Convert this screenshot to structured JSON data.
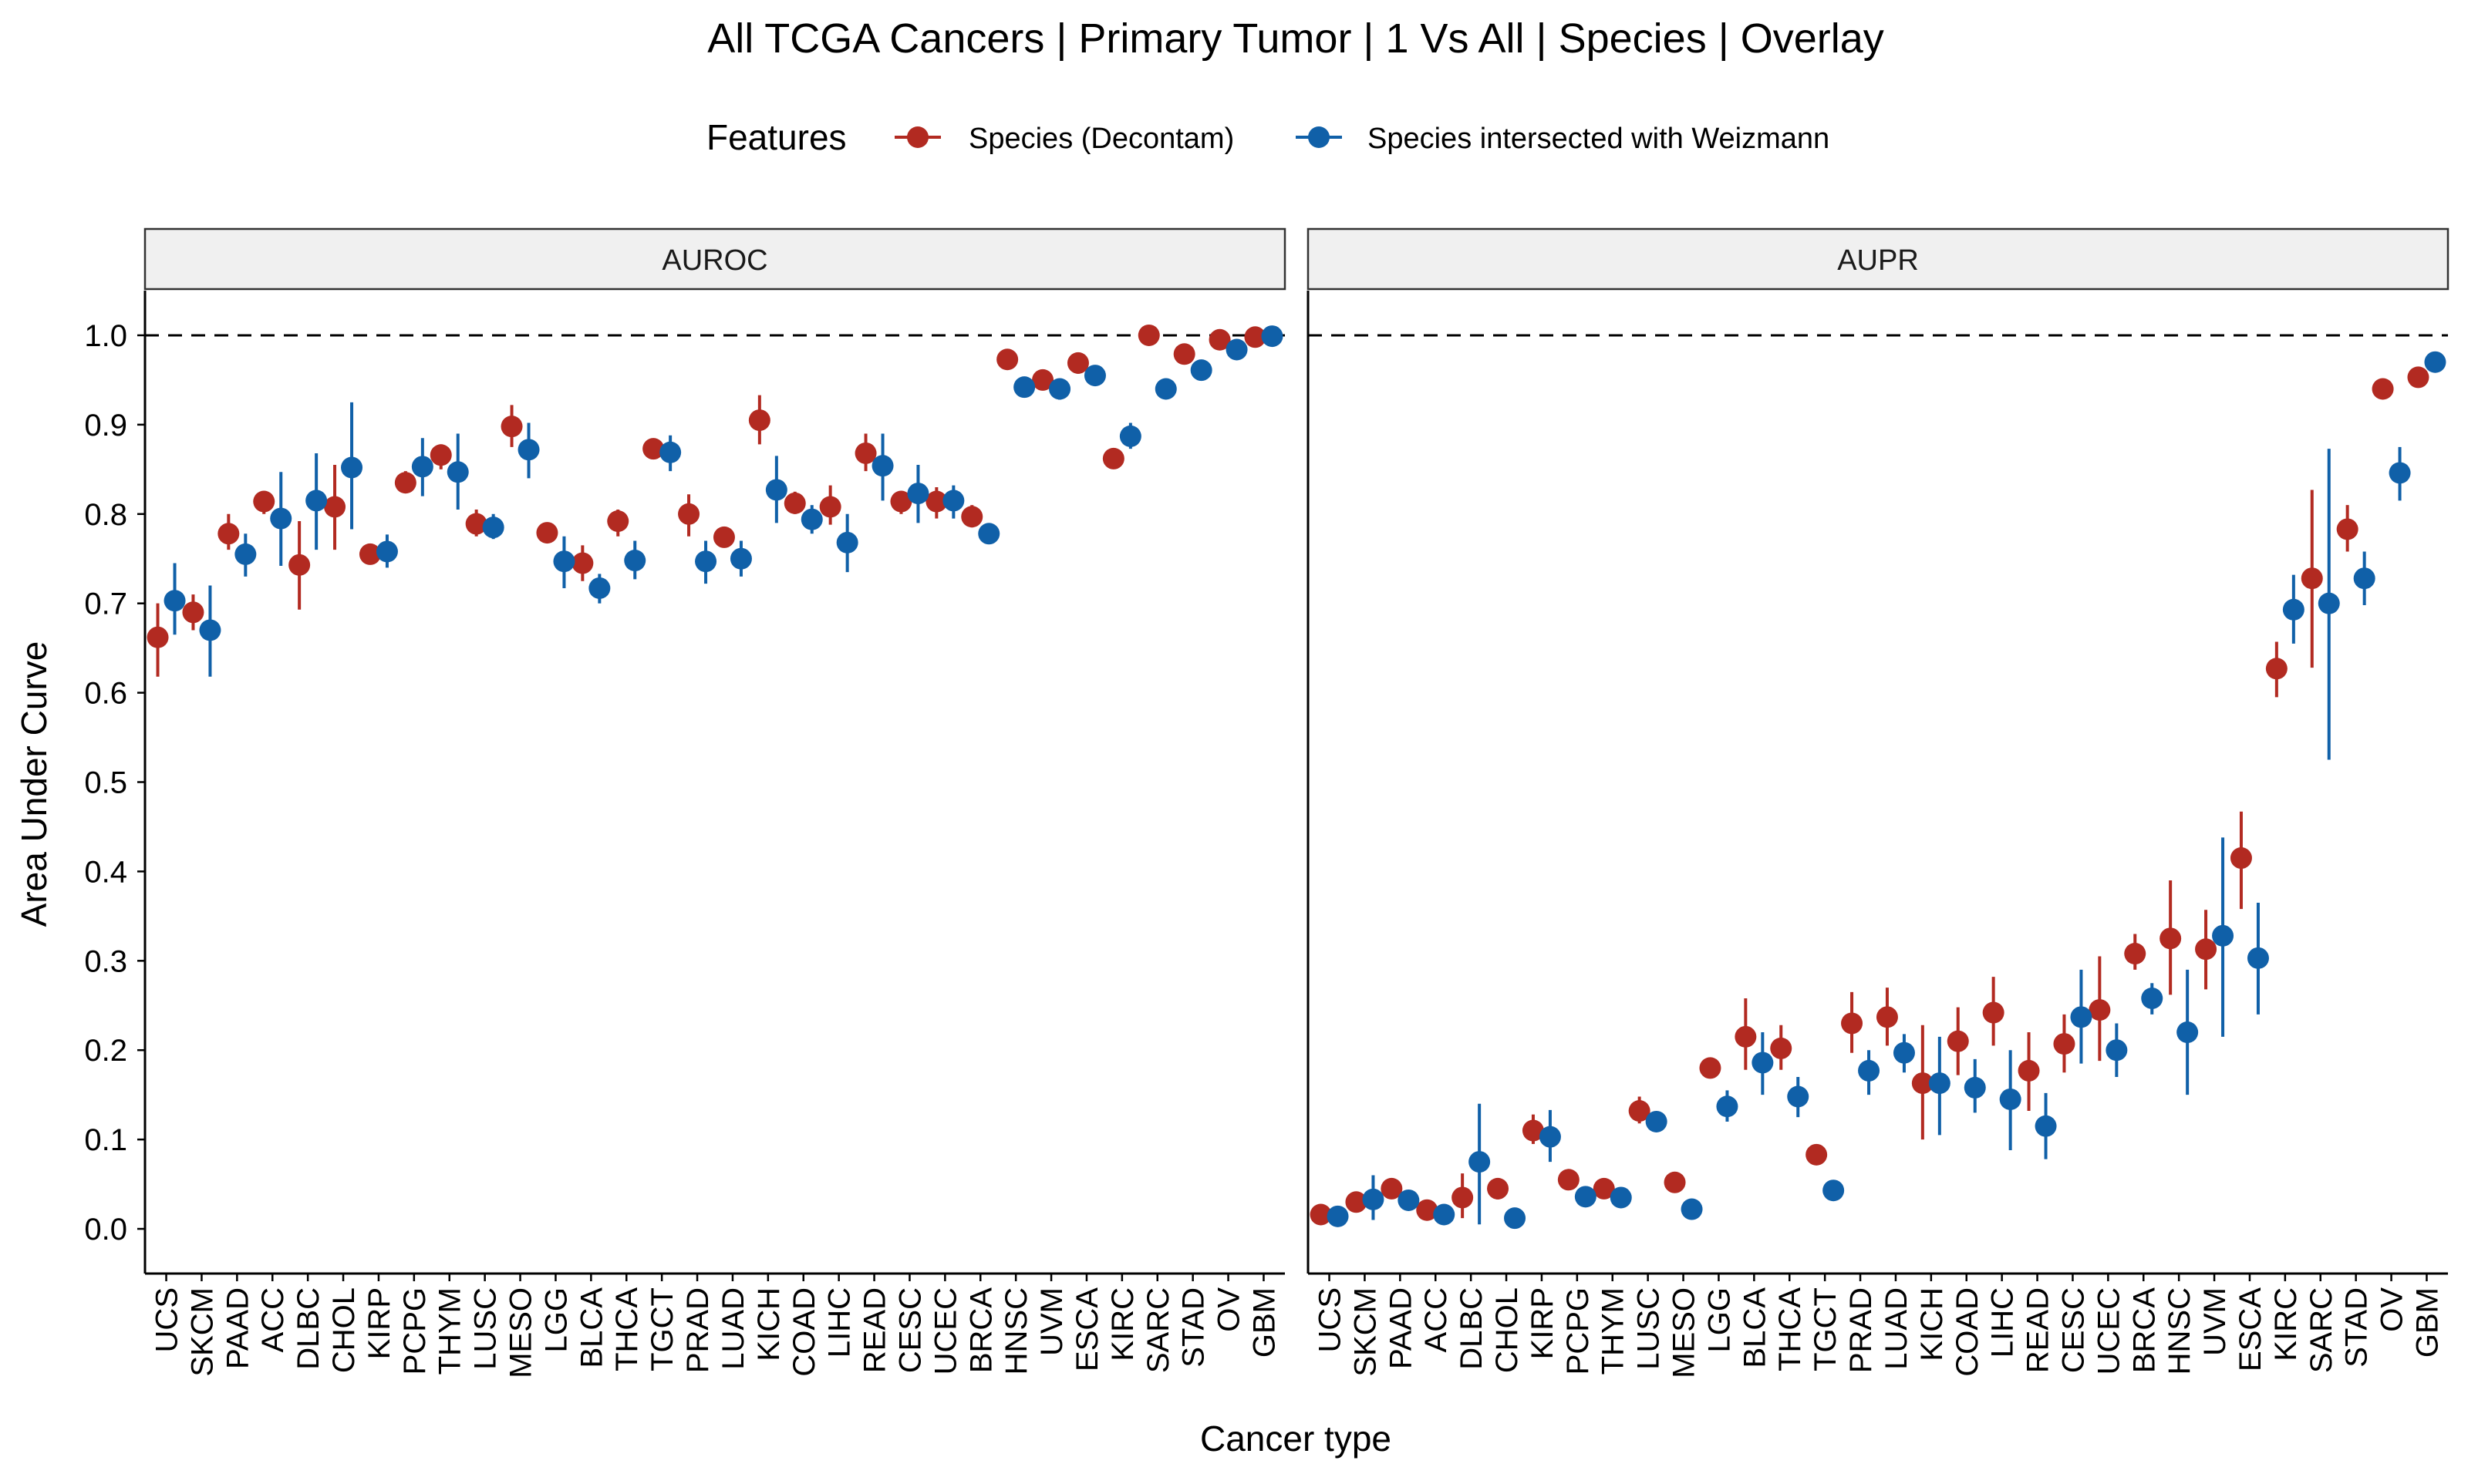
{
  "chart_data": {
    "type": "scatter",
    "title": "All TCGA Cancers | Primary Tumor | 1 Vs All | Species | Overlay",
    "xlabel": "Cancer type",
    "ylabel": "Area Under Curve",
    "ylim": [
      -0.05,
      1.05
    ],
    "yticks": [
      "0.0",
      "0.1",
      "0.2",
      "0.3",
      "0.4",
      "0.5",
      "0.6",
      "0.7",
      "0.8",
      "0.9",
      "1.0"
    ],
    "reference_line": 1.0,
    "grid": false,
    "legend": {
      "title": "Features",
      "position": "top",
      "entries": [
        {
          "name": "Species (Decontam)",
          "color": "#B22A21"
        },
        {
          "name": "Species intersected with Weizmann",
          "color": "#1060A8"
        }
      ]
    },
    "panels": [
      {
        "name": "AUROC",
        "categories": [
          "UCS",
          "SKCM",
          "PAAD",
          "ACC",
          "DLBC",
          "CHOL",
          "KIRP",
          "PCPG",
          "THYM",
          "LUSC",
          "MESO",
          "LGG",
          "BLCA",
          "THCA",
          "TGCT",
          "PRAD",
          "LUAD",
          "KICH",
          "COAD",
          "LIHC",
          "READ",
          "CESC",
          "UCEC",
          "BRCA",
          "HNSC",
          "UVM",
          "ESCA",
          "KIRC",
          "SARC",
          "STAD",
          "OV",
          "GBM"
        ],
        "series": [
          {
            "name": "Species (Decontam)",
            "values": [
              0.662,
              0.69,
              0.778,
              0.814,
              0.743,
              0.808,
              0.755,
              0.835,
              0.866,
              0.789,
              0.898,
              0.779,
              0.745,
              0.792,
              0.873,
              0.8,
              0.774,
              0.905,
              0.812,
              0.808,
              0.868,
              0.814,
              0.814,
              0.797,
              0.973,
              0.95,
              0.969,
              0.862,
              1.0,
              0.979,
              0.995,
              0.998
            ],
            "lower": [
              0.618,
              0.67,
              0.76,
              0.8,
              0.693,
              0.76,
              0.745,
              0.825,
              0.85,
              0.775,
              0.875,
              0.77,
              0.725,
              0.775,
              0.865,
              0.775,
              0.765,
              0.878,
              0.8,
              0.788,
              0.848,
              0.8,
              0.795,
              0.785,
              0.965,
              0.943,
              0.957,
              0.852,
              1.0,
              0.975,
              0.993,
              0.995
            ],
            "upper": [
              0.7,
              0.71,
              0.8,
              0.825,
              0.792,
              0.855,
              0.765,
              0.848,
              0.878,
              0.805,
              0.922,
              0.79,
              0.765,
              0.805,
              0.88,
              0.822,
              0.783,
              0.933,
              0.825,
              0.832,
              0.89,
              0.825,
              0.83,
              0.81,
              0.98,
              0.957,
              0.98,
              0.872,
              1.0,
              0.985,
              0.998,
              1.0
            ]
          },
          {
            "name": "Species intersected with Weizmann",
            "values": [
              0.703,
              0.67,
              0.755,
              0.795,
              0.815,
              0.852,
              0.758,
              0.853,
              0.847,
              0.785,
              0.872,
              0.747,
              0.717,
              0.748,
              0.869,
              0.747,
              0.75,
              0.827,
              0.794,
              0.768,
              0.854,
              0.823,
              0.815,
              0.778,
              0.942,
              0.94,
              0.955,
              0.887,
              0.94,
              0.961,
              0.984,
              0.999
            ],
            "lower": [
              0.665,
              0.618,
              0.73,
              0.742,
              0.76,
              0.783,
              0.74,
              0.82,
              0.805,
              0.772,
              0.84,
              0.717,
              0.7,
              0.727,
              0.848,
              0.722,
              0.73,
              0.79,
              0.778,
              0.735,
              0.815,
              0.79,
              0.795,
              0.772,
              0.935,
              0.928,
              0.948,
              0.873,
              0.935,
              0.953,
              0.978,
              0.997
            ],
            "upper": [
              0.745,
              0.72,
              0.778,
              0.847,
              0.868,
              0.925,
              0.777,
              0.885,
              0.89,
              0.8,
              0.902,
              0.775,
              0.733,
              0.77,
              0.888,
              0.77,
              0.77,
              0.865,
              0.81,
              0.8,
              0.89,
              0.855,
              0.832,
              0.785,
              0.95,
              0.95,
              0.962,
              0.902,
              0.945,
              0.968,
              0.99,
              1.0
            ]
          }
        ]
      },
      {
        "name": "AUPR",
        "categories": [
          "UCS",
          "SKCM",
          "PAAD",
          "ACC",
          "DLBC",
          "CHOL",
          "KIRP",
          "PCPG",
          "THYM",
          "LUSC",
          "MESO",
          "LGG",
          "BLCA",
          "THCA",
          "TGCT",
          "PRAD",
          "LUAD",
          "KICH",
          "COAD",
          "LIHC",
          "READ",
          "CESC",
          "UCEC",
          "BRCA",
          "HNSC",
          "UVM",
          "ESCA",
          "KIRC",
          "SARC",
          "STAD",
          "OV",
          "GBM"
        ],
        "series": [
          {
            "name": "Species (Decontam)",
            "values": [
              0.016,
              0.03,
              0.045,
              0.021,
              0.035,
              0.045,
              0.11,
              0.055,
              0.045,
              0.132,
              0.052,
              0.18,
              0.215,
              0.202,
              0.083,
              0.23,
              0.237,
              0.163,
              0.21,
              0.242,
              0.177,
              0.207,
              0.245,
              0.308,
              0.325,
              0.313,
              0.415,
              0.627,
              0.728,
              0.783,
              0.94,
              0.953
            ],
            "lower": [
              0.011,
              0.022,
              0.038,
              0.016,
              0.012,
              0.033,
              0.095,
              0.047,
              0.038,
              0.118,
              0.045,
              0.173,
              0.178,
              0.178,
              0.075,
              0.197,
              0.205,
              0.1,
              0.172,
              0.205,
              0.132,
              0.175,
              0.188,
              0.29,
              0.262,
              0.268,
              0.358,
              0.595,
              0.628,
              0.758,
              0.935,
              0.948
            ],
            "upper": [
              0.021,
              0.04,
              0.052,
              0.027,
              0.062,
              0.057,
              0.128,
              0.063,
              0.053,
              0.148,
              0.06,
              0.188,
              0.258,
              0.228,
              0.093,
              0.265,
              0.27,
              0.228,
              0.248,
              0.282,
              0.22,
              0.24,
              0.305,
              0.33,
              0.39,
              0.357,
              0.467,
              0.657,
              0.827,
              0.81,
              0.945,
              0.958
            ]
          },
          {
            "name": "Species intersected with Weizmann",
            "values": [
              0.014,
              0.033,
              0.032,
              0.016,
              0.075,
              0.012,
              0.103,
              0.036,
              0.035,
              0.12,
              0.022,
              0.137,
              0.186,
              0.148,
              0.043,
              0.177,
              0.197,
              0.163,
              0.158,
              0.145,
              0.115,
              0.237,
              0.2,
              0.258,
              0.22,
              0.328,
              0.303,
              0.693,
              0.7,
              0.728,
              0.846,
              0.97
            ],
            "lower": [
              0.009,
              0.01,
              0.025,
              0.011,
              0.005,
              0.008,
              0.075,
              0.029,
              0.028,
              0.112,
              0.017,
              0.12,
              0.15,
              0.125,
              0.038,
              0.15,
              0.175,
              0.105,
              0.13,
              0.088,
              0.078,
              0.185,
              0.17,
              0.24,
              0.15,
              0.215,
              0.24,
              0.655,
              0.525,
              0.698,
              0.815,
              0.963
            ],
            "upper": [
              0.02,
              0.06,
              0.04,
              0.022,
              0.14,
              0.016,
              0.133,
              0.043,
              0.042,
              0.128,
              0.027,
              0.155,
              0.22,
              0.17,
              0.048,
              0.2,
              0.218,
              0.215,
              0.19,
              0.2,
              0.152,
              0.29,
              0.23,
              0.275,
              0.29,
              0.438,
              0.365,
              0.732,
              0.873,
              0.758,
              0.875,
              0.977
            ]
          }
        ]
      }
    ]
  }
}
